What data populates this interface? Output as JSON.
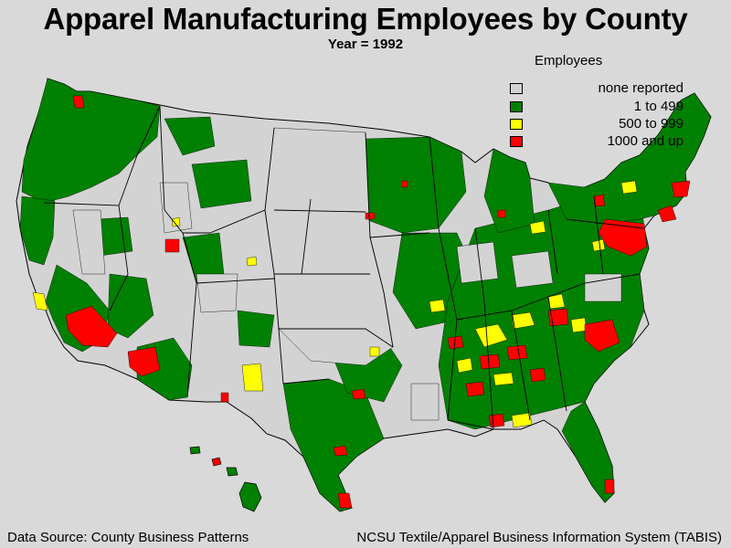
{
  "title": "Apparel Manufacturing Employees by County",
  "subtitle": "Year = 1992",
  "legend": {
    "title": "Employees",
    "items": [
      {
        "label": "none reported",
        "color": "#d3d3d3"
      },
      {
        "label": "1 to 499",
        "color": "#008000"
      },
      {
        "label": "500 to 999",
        "color": "#ffff00"
      },
      {
        "label": "1000 and up",
        "color": "#ff0000"
      }
    ]
  },
  "footer": {
    "source": "Data Source: County Business Patterns",
    "credit": "NCSU Textile/Apparel Business Information System (TABIS)"
  },
  "colors": {
    "background": "#d9d9d9",
    "none": "#d3d3d3",
    "low": "#008000",
    "mid": "#ffff00",
    "high": "#ff0000",
    "border": "#000000"
  }
}
